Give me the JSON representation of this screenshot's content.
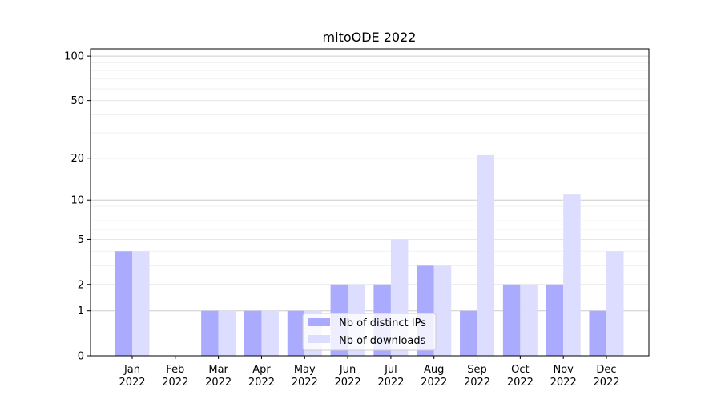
{
  "chart_data": {
    "type": "bar",
    "title": "mitoODE 2022",
    "xlabel": "",
    "ylabel": "",
    "yscale": "log(1+y)",
    "ylim": [
      0,
      112
    ],
    "yticks": [
      0,
      1,
      2,
      5,
      10,
      20,
      50,
      100
    ],
    "grid": "horizontal, major and minor",
    "legend_position": "lower-center",
    "categories": [
      "Jan\n2022",
      "Feb\n2022",
      "Mar\n2022",
      "Apr\n2022",
      "May\n2022",
      "Jun\n2022",
      "Jul\n2022",
      "Aug\n2022",
      "Sep\n2022",
      "Oct\n2022",
      "Nov\n2022",
      "Dec\n2022"
    ],
    "series": [
      {
        "name": "Nb of distinct IPs",
        "color": "#aaaaff",
        "values": [
          4,
          0,
          1,
          1,
          1,
          2,
          2,
          3,
          1,
          2,
          2,
          1
        ]
      },
      {
        "name": "Nb of downloads",
        "color": "#ddddff",
        "values": [
          4,
          0,
          1,
          1,
          1,
          2,
          5,
          3,
          21,
          2,
          11,
          4
        ]
      }
    ]
  }
}
